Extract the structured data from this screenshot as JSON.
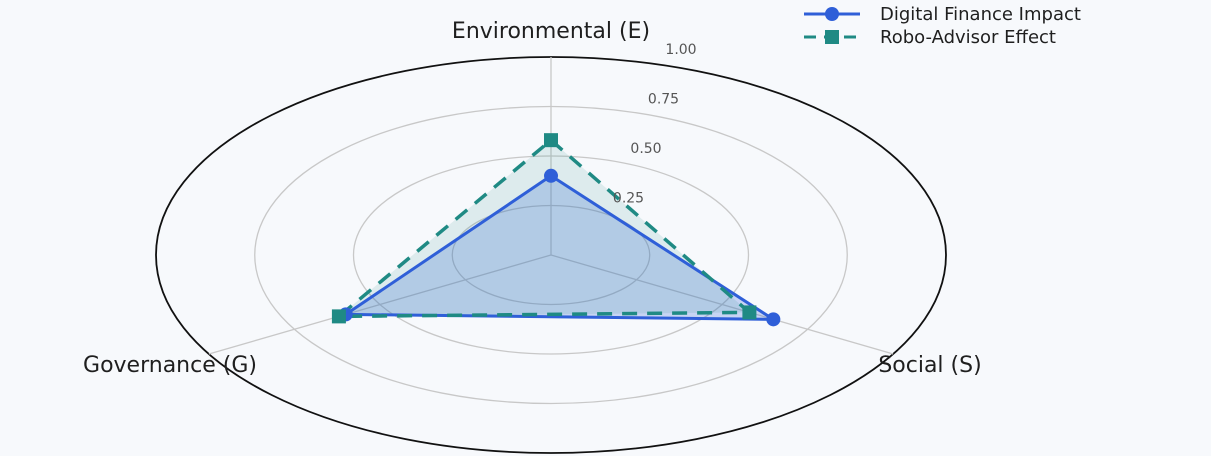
{
  "chart_data": {
    "type": "radar",
    "categories": [
      "Environmental (E)",
      "Social (S)",
      "Governance (G)"
    ],
    "radial_ticks": [
      "0.25",
      "0.50",
      "0.75",
      "1.00"
    ],
    "rlim": [
      0,
      1.0
    ],
    "grid": true,
    "legend_position": "top-right",
    "series": [
      {
        "name": "Digital Finance Impact",
        "values": [
          0.4,
          0.65,
          0.6
        ],
        "color": "#2f5fd8",
        "line_style": "solid",
        "marker": "circle",
        "fill": "#2f5fd8"
      },
      {
        "name": "Robo-Advisor Effect",
        "values": [
          0.58,
          0.58,
          0.62
        ],
        "color": "#1f8a84",
        "line_style": "dashed",
        "marker": "square",
        "fill": "#1f8a84"
      }
    ]
  }
}
